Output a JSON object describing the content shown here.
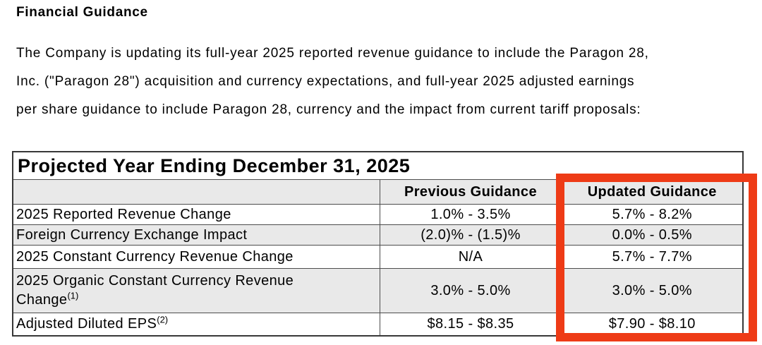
{
  "document": {
    "heading": "Financial Guidance",
    "paragraph_lines": [
      "The Company is updating its full-year 2025 reported revenue guidance to include the Paragon 28,",
      "Inc. (\"Paragon 28\") acquisition and currency expectations, and full-year 2025 adjusted earnings",
      "per share guidance to include Paragon 28, currency and the impact from current tariff proposals:"
    ]
  },
  "table": {
    "title": "Projected Year Ending December 31, 2025",
    "columns": [
      "",
      "Previous Guidance",
      "Updated Guidance"
    ],
    "rows": [
      {
        "label": "2025 Reported Revenue Change",
        "footnote": "",
        "previous": "1.0% - 3.5%",
        "updated": "5.7% - 8.2%"
      },
      {
        "label": "Foreign Currency Exchange Impact",
        "footnote": "",
        "previous": "(2.0)% - (1.5)%",
        "updated": "0.0% - 0.5%"
      },
      {
        "label": "2025 Constant Currency Revenue Change",
        "footnote": "",
        "previous": "N/A",
        "updated": "5.7% - 7.7%"
      },
      {
        "label": "2025 Organic Constant Currency Revenue Change",
        "footnote": "(1)",
        "previous": "3.0% - 5.0%",
        "updated": "3.0% - 5.0%"
      },
      {
        "label": "Adjusted Diluted EPS",
        "footnote": "(2)",
        "previous": "$8.15 - $8.35",
        "updated": "$7.90 - $8.10"
      }
    ]
  },
  "annotation": {
    "highlighted_column": "Updated Guidance"
  },
  "colors": {
    "highlight_red": "#ee3b16",
    "row_shade_gray": "#e9e9e9"
  }
}
